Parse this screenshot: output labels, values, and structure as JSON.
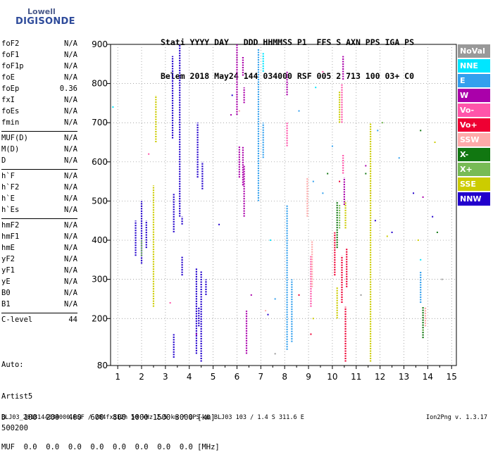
{
  "logo": {
    "line1": "Lowell",
    "line2": "DIGISONDE"
  },
  "header": {
    "line1": "Stati YYYY DAY   DDD HHMMSS P1  FFS S AXN PPS IGA PS",
    "line2": "Belem 2018 May24 144 034000 RSF 005 2 713 100 03+ C0"
  },
  "params": [
    [
      {
        "k": "foF2",
        "v": "N/A"
      },
      {
        "k": "foF1",
        "v": "N/A"
      },
      {
        "k": "foF1p",
        "v": "N/A"
      },
      {
        "k": "foE",
        "v": "N/A"
      },
      {
        "k": "foEp",
        "v": "0.36"
      },
      {
        "k": "fxI",
        "v": "N/A"
      },
      {
        "k": "foEs",
        "v": "N/A"
      },
      {
        "k": "fmin",
        "v": "N/A"
      }
    ],
    [
      {
        "k": "MUF(D)",
        "v": "N/A"
      },
      {
        "k": "M(D)",
        "v": "N/A"
      },
      {
        "k": "D",
        "v": "N/A"
      }
    ],
    [
      {
        "k": "h`F",
        "v": "N/A"
      },
      {
        "k": "h`F2",
        "v": "N/A"
      },
      {
        "k": "h`E",
        "v": "N/A"
      },
      {
        "k": "h`Es",
        "v": "N/A"
      }
    ],
    [
      {
        "k": "hmF2",
        "v": "N/A"
      },
      {
        "k": "hmF1",
        "v": "N/A"
      },
      {
        "k": "hmE",
        "v": "N/A"
      },
      {
        "k": "yF2",
        "v": "N/A"
      },
      {
        "k": "yF1",
        "v": "N/A"
      },
      {
        "k": "yE",
        "v": "N/A"
      },
      {
        "k": "B0",
        "v": "N/A"
      },
      {
        "k": "B1",
        "v": "N/A"
      }
    ],
    [
      {
        "k": "C-level",
        "v": "44"
      }
    ]
  ],
  "auto": {
    "line1": "Auto:",
    "line2": "Artist5",
    "line3": "500200"
  },
  "dmuf": {
    "line1": "D    100  200  400  600  800 1000 1500 3000 [km]",
    "line2": "MUF  0.0  0.0  0.0  0.0  0.0  0.0  0.0  0.0 [MHz]"
  },
  "footer": {
    "file": "BLJ03_2018144034000.RSF / 284fx512h 50 kHz 2.5 km / DPS-4D BLJ03 103 / 1.4 S 311.6 E",
    "version": "Ion2Png v. 1.3.17"
  },
  "legend": [
    {
      "label": "NoVal",
      "color": "#999999"
    },
    {
      "label": "NNE",
      "color": "#00e6ff"
    },
    {
      "label": "E",
      "color": "#33a0ee"
    },
    {
      "label": "W",
      "color": "#aa00aa"
    },
    {
      "label": "Vo-",
      "color": "#ff55aa"
    },
    {
      "label": "Vo+",
      "color": "#ee0033"
    },
    {
      "label": "SSW",
      "color": "#ffaaaa"
    },
    {
      "label": "X-",
      "color": "#117711"
    },
    {
      "label": "X+",
      "color": "#77bb55"
    },
    {
      "label": "SSE",
      "color": "#cccc00"
    },
    {
      "label": "NNW",
      "color": "#2200cc"
    }
  ],
  "chart_data": {
    "type": "scatter",
    "title": "",
    "xlabel": "",
    "ylabel": "",
    "xlim": [
      0.7,
      15.2
    ],
    "ylim": [
      80,
      900
    ],
    "xticks": [
      1,
      2,
      3,
      4,
      5,
      6,
      7,
      8,
      9,
      10,
      11,
      12,
      13,
      14,
      15
    ],
    "yticks": [
      80,
      200,
      300,
      400,
      500,
      600,
      700,
      800,
      900
    ],
    "grid": "dotted",
    "legend_position": "right",
    "traces": [
      {
        "name": "NNW",
        "color": "#2200cc",
        "segments": [
          [
            1.75,
            360,
            450
          ],
          [
            2.0,
            340,
            500
          ],
          [
            2.2,
            380,
            450
          ],
          [
            3.3,
            660,
            870
          ],
          [
            3.35,
            420,
            520
          ],
          [
            3.35,
            100,
            160
          ],
          [
            3.6,
            460,
            900
          ],
          [
            3.7,
            310,
            360
          ],
          [
            3.7,
            440,
            460
          ],
          [
            4.3,
            110,
            330
          ],
          [
            4.35,
            560,
            700
          ],
          [
            4.4,
            180,
            230
          ],
          [
            4.5,
            90,
            320
          ],
          [
            4.55,
            530,
            600
          ],
          [
            4.7,
            260,
            300
          ]
        ],
        "points": [
          [
            5.25,
            440
          ],
          [
            5.8,
            770
          ],
          [
            7.3,
            210
          ],
          [
            13.4,
            520
          ],
          [
            14.2,
            460
          ],
          [
            12.5,
            420
          ],
          [
            11.8,
            450
          ]
        ]
      },
      {
        "name": "W",
        "color": "#aa00aa",
        "segments": [
          [
            6.0,
            720,
            900
          ],
          [
            6.1,
            560,
            640
          ],
          [
            6.25,
            540,
            640
          ],
          [
            6.25,
            820,
            870
          ],
          [
            6.3,
            460,
            590
          ],
          [
            6.3,
            750,
            790
          ],
          [
            6.4,
            110,
            220
          ],
          [
            8.1,
            770,
            830
          ],
          [
            10.45,
            810,
            870
          ],
          [
            10.5,
            490,
            560
          ]
        ],
        "points": [
          [
            5.75,
            720
          ],
          [
            6.6,
            260
          ],
          [
            11.4,
            590
          ],
          [
            11.6,
            520
          ],
          [
            13.8,
            510
          ],
          [
            4.3,
            160
          ]
        ]
      },
      {
        "name": "E",
        "color": "#33a0ee",
        "segments": [
          [
            6.9,
            500,
            890
          ],
          [
            7.1,
            610,
            700
          ],
          [
            8.1,
            120,
            490
          ],
          [
            8.3,
            140,
            300
          ],
          [
            13.7,
            240,
            320
          ]
        ],
        "points": [
          [
            7.6,
            250
          ],
          [
            8.6,
            730
          ],
          [
            9.2,
            550
          ],
          [
            9.6,
            520
          ],
          [
            12.8,
            610
          ],
          [
            11.9,
            680
          ],
          [
            10.0,
            640
          ]
        ]
      },
      {
        "name": "Vo+",
        "color": "#ee0033",
        "segments": [
          [
            10.1,
            310,
            420
          ],
          [
            10.4,
            240,
            360
          ],
          [
            10.55,
            90,
            230
          ],
          [
            10.6,
            280,
            380
          ]
        ],
        "points": [
          [
            10.3,
            550
          ],
          [
            8.6,
            260
          ],
          [
            9.1,
            160
          ]
        ]
      },
      {
        "name": "Vo-",
        "color": "#ff55aa",
        "segments": [
          [
            10.4,
            700,
            800
          ],
          [
            10.45,
            570,
            620
          ],
          [
            9.1,
            230,
            360
          ],
          [
            8.1,
            640,
            700
          ]
        ],
        "points": [
          [
            9.6,
            830
          ],
          [
            2.3,
            620
          ],
          [
            3.2,
            240
          ]
        ]
      },
      {
        "name": "SSW",
        "color": "#ffaaaa",
        "segments": [
          [
            9.15,
            280,
            400
          ],
          [
            8.95,
            460,
            560
          ],
          [
            13.9,
            180,
            230
          ]
        ],
        "points": [
          [
            7.2,
            220
          ],
          [
            6.1,
            730
          ]
        ]
      },
      {
        "name": "SSE",
        "color": "#cccc00",
        "segments": [
          [
            2.5,
            230,
            540
          ],
          [
            2.6,
            650,
            770
          ],
          [
            10.2,
            200,
            280
          ],
          [
            10.3,
            700,
            780
          ],
          [
            10.55,
            430,
            500
          ],
          [
            11.6,
            90,
            700
          ]
        ],
        "points": [
          [
            12.3,
            410
          ],
          [
            9.2,
            200
          ],
          [
            13.6,
            400
          ],
          [
            14.3,
            650
          ]
        ]
      },
      {
        "name": "X-",
        "color": "#117711",
        "segments": [
          [
            10.2,
            380,
            500
          ],
          [
            13.8,
            150,
            230
          ]
        ],
        "points": [
          [
            11.4,
            570
          ],
          [
            9.8,
            570
          ],
          [
            13.7,
            680
          ],
          [
            14.4,
            420
          ]
        ]
      },
      {
        "name": "X+",
        "color": "#77bb55",
        "segments": [
          [
            10.3,
            430,
            490
          ],
          [
            2.0,
            360,
            400
          ]
        ],
        "points": [
          [
            13.8,
            170
          ],
          [
            12.1,
            700
          ]
        ]
      },
      {
        "name": "NNE",
        "color": "#00e6ff",
        "segments": [
          [
            7.1,
            830,
            880
          ]
        ],
        "points": [
          [
            0.8,
            740
          ],
          [
            7.4,
            400
          ],
          [
            9.3,
            790
          ],
          [
            13.7,
            350
          ]
        ]
      },
      {
        "name": "NoVal",
        "color": "#999999",
        "segments": [],
        "points": [
          [
            7.6,
            110
          ],
          [
            11.2,
            260
          ],
          [
            14.6,
            300
          ]
        ]
      }
    ]
  }
}
